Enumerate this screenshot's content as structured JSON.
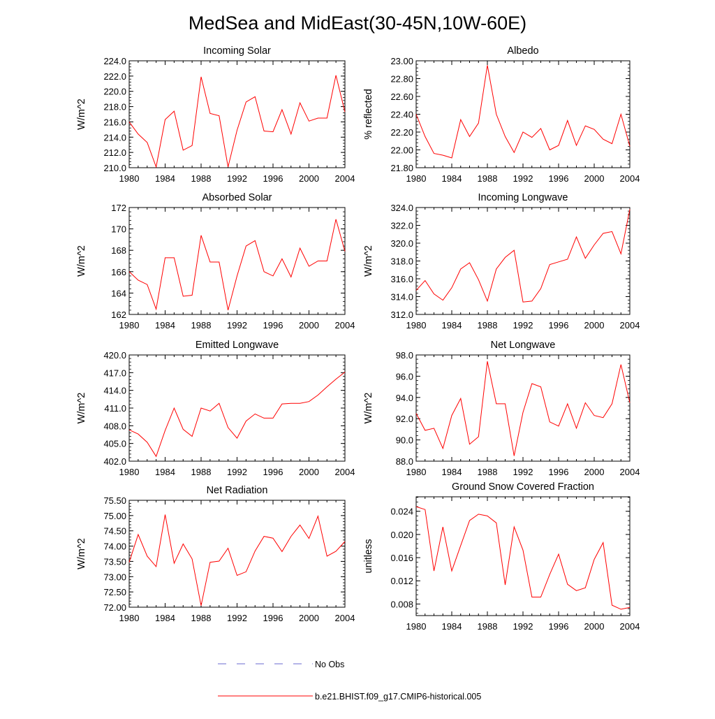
{
  "title": "MedSea and MidEast(30-45N,10W-60E)",
  "legend": {
    "entries": [
      {
        "label": "No Obs",
        "color": "#6a6ad0",
        "dash": true
      },
      {
        "label": "b.e21.BHIST.f09_g17.CMIP6-historical.005",
        "color": "#ff0000",
        "dash": false
      }
    ]
  },
  "line_color": "#ff0000",
  "chart_data": [
    {
      "type": "line",
      "title": "Incoming Solar",
      "ylabel": "W/m^2",
      "xlabel": "",
      "xlim": [
        1980,
        2004
      ],
      "x_ticks": [
        "1980",
        "1984",
        "1988",
        "1992",
        "1996",
        "2000",
        "2004"
      ],
      "ylim": [
        210.0,
        224.0
      ],
      "y_ticks": [
        "210.0",
        "212.0",
        "214.0",
        "216.0",
        "218.0",
        "220.0",
        "222.0",
        "224.0"
      ],
      "series": [
        {
          "x": [
            1980,
            1981,
            1982,
            1983,
            1984,
            1985,
            1986,
            1987,
            1988,
            1989,
            1990,
            1991,
            1992,
            1993,
            1994,
            1995,
            1996,
            1997,
            1998,
            1999,
            2000,
            2001,
            2002,
            2003,
            2004
          ],
          "y": [
            216.0,
            214.4,
            213.3,
            210.1,
            216.3,
            217.4,
            212.3,
            212.9,
            221.9,
            217.1,
            216.8,
            210.1,
            214.9,
            218.6,
            219.3,
            214.8,
            214.7,
            217.6,
            214.4,
            218.5,
            216.1,
            216.5,
            216.5,
            222.1,
            217.3
          ]
        }
      ]
    },
    {
      "type": "line",
      "title": "Albedo",
      "ylabel": "% reflected",
      "xlabel": "",
      "xlim": [
        1980,
        2004
      ],
      "x_ticks": [
        "1980",
        "1984",
        "1988",
        "1992",
        "1996",
        "2000",
        "2004"
      ],
      "ylim": [
        21.8,
        23.0
      ],
      "y_ticks": [
        "21.80",
        "22.00",
        "22.20",
        "22.40",
        "22.60",
        "22.80",
        "23.00"
      ],
      "series": [
        {
          "x": [
            1980,
            1981,
            1982,
            1983,
            1984,
            1985,
            1986,
            1987,
            1988,
            1989,
            1990,
            1991,
            1992,
            1993,
            1994,
            1995,
            1996,
            1997,
            1998,
            1999,
            2000,
            2001,
            2002,
            2003,
            2004
          ],
          "y": [
            22.4,
            22.15,
            21.96,
            21.94,
            21.91,
            22.34,
            22.15,
            22.3,
            22.95,
            22.4,
            22.15,
            21.97,
            22.2,
            22.14,
            22.24,
            22.0,
            22.05,
            22.33,
            22.05,
            22.27,
            22.23,
            22.12,
            22.07,
            22.4,
            22.04
          ]
        }
      ]
    },
    {
      "type": "line",
      "title": "Absorbed Solar",
      "ylabel": "W/m^2",
      "xlabel": "",
      "xlim": [
        1980,
        2004
      ],
      "x_ticks": [
        "1980",
        "1984",
        "1988",
        "1992",
        "1996",
        "2000",
        "2004"
      ],
      "ylim": [
        162,
        172
      ],
      "y_ticks": [
        "162",
        "164",
        "166",
        "168",
        "170",
        "172"
      ],
      "series": [
        {
          "x": [
            1980,
            1981,
            1982,
            1983,
            1984,
            1985,
            1986,
            1987,
            1988,
            1989,
            1990,
            1991,
            1992,
            1993,
            1994,
            1995,
            1996,
            1997,
            1998,
            1999,
            2000,
            2001,
            2002,
            2003,
            2004
          ],
          "y": [
            166.0,
            165.2,
            164.8,
            162.5,
            167.3,
            167.3,
            163.7,
            163.8,
            169.4,
            166.9,
            166.9,
            162.4,
            165.6,
            168.4,
            168.9,
            166.0,
            165.6,
            167.2,
            165.5,
            168.2,
            166.5,
            167.0,
            167.0,
            170.9,
            167.9
          ]
        }
      ]
    },
    {
      "type": "line",
      "title": "Incoming Longwave",
      "ylabel": "W/m^2",
      "xlabel": "",
      "xlim": [
        1980,
        2004
      ],
      "x_ticks": [
        "1980",
        "1984",
        "1988",
        "1992",
        "1996",
        "2000",
        "2004"
      ],
      "ylim": [
        312.0,
        324.0
      ],
      "y_ticks": [
        "312.0",
        "314.0",
        "316.0",
        "318.0",
        "320.0",
        "322.0",
        "324.0"
      ],
      "series": [
        {
          "x": [
            1980,
            1981,
            1982,
            1983,
            1984,
            1985,
            1986,
            1987,
            1988,
            1989,
            1990,
            1991,
            1992,
            1993,
            1994,
            1995,
            1996,
            1997,
            1998,
            1999,
            2000,
            2001,
            2002,
            2003,
            2004
          ],
          "y": [
            314.7,
            315.8,
            314.3,
            313.6,
            315.0,
            317.1,
            317.8,
            315.9,
            313.5,
            317.1,
            318.4,
            319.2,
            313.4,
            313.5,
            314.9,
            317.6,
            317.9,
            318.2,
            320.7,
            318.3,
            319.8,
            321.1,
            321.3,
            318.8,
            323.8
          ]
        }
      ]
    },
    {
      "type": "line",
      "title": "Emitted Longwave",
      "ylabel": "W/m^2",
      "xlabel": "",
      "xlim": [
        1980,
        2004
      ],
      "x_ticks": [
        "1980",
        "1984",
        "1988",
        "1992",
        "1996",
        "2000",
        "2004"
      ],
      "ylim": [
        402.0,
        420.0
      ],
      "y_ticks": [
        "402.0",
        "405.0",
        "408.0",
        "411.0",
        "414.0",
        "417.0",
        "420.0"
      ],
      "series": [
        {
          "x": [
            1980,
            1981,
            1982,
            1983,
            1984,
            1985,
            1986,
            1987,
            1988,
            1989,
            1990,
            1991,
            1992,
            1993,
            1994,
            1995,
            1996,
            1997,
            1998,
            1999,
            2000,
            2001,
            2002,
            2003,
            2004
          ],
          "y": [
            407.3,
            406.6,
            405.2,
            402.8,
            407.2,
            411.0,
            407.4,
            406.2,
            411.0,
            410.5,
            411.8,
            407.7,
            405.9,
            408.8,
            410.0,
            409.3,
            409.3,
            411.7,
            411.8,
            411.8,
            412.1,
            413.2,
            414.6,
            415.9,
            417.1
          ]
        }
      ]
    },
    {
      "type": "line",
      "title": "Net Longwave",
      "ylabel": "W/m^2",
      "xlabel": "",
      "xlim": [
        1980,
        2004
      ],
      "x_ticks": [
        "1980",
        "1984",
        "1988",
        "1992",
        "1996",
        "2000",
        "2004"
      ],
      "ylim": [
        88.0,
        98.0
      ],
      "y_ticks": [
        "88.0",
        "90.0",
        "92.0",
        "94.0",
        "96.0",
        "98.0"
      ],
      "series": [
        {
          "x": [
            1980,
            1981,
            1982,
            1983,
            1984,
            1985,
            1986,
            1987,
            1988,
            1989,
            1990,
            1991,
            1992,
            1993,
            1994,
            1995,
            1996,
            1997,
            1998,
            1999,
            2000,
            2001,
            2002,
            2003,
            2004
          ],
          "y": [
            92.5,
            90.9,
            91.1,
            89.2,
            92.3,
            93.9,
            89.6,
            90.3,
            97.4,
            93.4,
            93.4,
            88.5,
            92.6,
            95.3,
            95.0,
            91.7,
            91.3,
            93.4,
            91.1,
            93.5,
            92.3,
            92.1,
            93.4,
            97.1,
            93.5
          ]
        }
      ]
    },
    {
      "type": "line",
      "title": "Net Radiation",
      "ylabel": "W/m^2",
      "xlabel": "",
      "xlim": [
        1980,
        2004
      ],
      "x_ticks": [
        "1980",
        "1984",
        "1988",
        "1992",
        "1996",
        "2000",
        "2004"
      ],
      "ylim": [
        72.0,
        75.5
      ],
      "y_ticks": [
        "72.00",
        "72.50",
        "73.00",
        "73.50",
        "74.00",
        "74.50",
        "75.00",
        "75.50"
      ],
      "series": [
        {
          "x": [
            1980,
            1981,
            1982,
            1983,
            1984,
            1985,
            1986,
            1987,
            1988,
            1989,
            1990,
            1991,
            1992,
            1993,
            1994,
            1995,
            1996,
            1997,
            1998,
            1999,
            2000,
            2001,
            2002,
            2003,
            2004
          ],
          "y": [
            73.47,
            74.38,
            73.67,
            73.33,
            75.03,
            73.44,
            74.07,
            73.58,
            72.05,
            73.47,
            73.51,
            73.93,
            73.04,
            73.16,
            73.84,
            74.32,
            74.26,
            73.82,
            74.32,
            74.69,
            74.25,
            74.98,
            73.67,
            73.83,
            74.15
          ]
        }
      ]
    },
    {
      "type": "line",
      "title": "Ground Snow Covered Fraction",
      "ylabel": "unitless",
      "xlabel": "",
      "xlim": [
        1980,
        2004
      ],
      "x_ticks": [
        "1980",
        "1984",
        "1988",
        "1992",
        "1996",
        "2000",
        "2004"
      ],
      "ylim": [
        0.006,
        0.0265
      ],
      "y_ticks": [
        "0.008",
        "0.012",
        "0.016",
        "0.020",
        "0.024"
      ],
      "y_tick_values": [
        0.008,
        0.012,
        0.016,
        0.02,
        0.024
      ],
      "series": [
        {
          "x": [
            1980,
            1981,
            1982,
            1983,
            1984,
            1985,
            1986,
            1987,
            1988,
            1989,
            1990,
            1991,
            1992,
            1993,
            1994,
            1995,
            1996,
            1997,
            1998,
            1999,
            2000,
            2001,
            2002,
            2003,
            2004
          ],
          "y": [
            0.0248,
            0.0243,
            0.0137,
            0.0213,
            0.0137,
            0.0181,
            0.0224,
            0.0235,
            0.0232,
            0.022,
            0.0113,
            0.0213,
            0.0173,
            0.0092,
            0.0092,
            0.0131,
            0.0166,
            0.0114,
            0.0103,
            0.0108,
            0.0157,
            0.0186,
            0.0078,
            0.0071,
            0.0074
          ]
        }
      ]
    }
  ]
}
